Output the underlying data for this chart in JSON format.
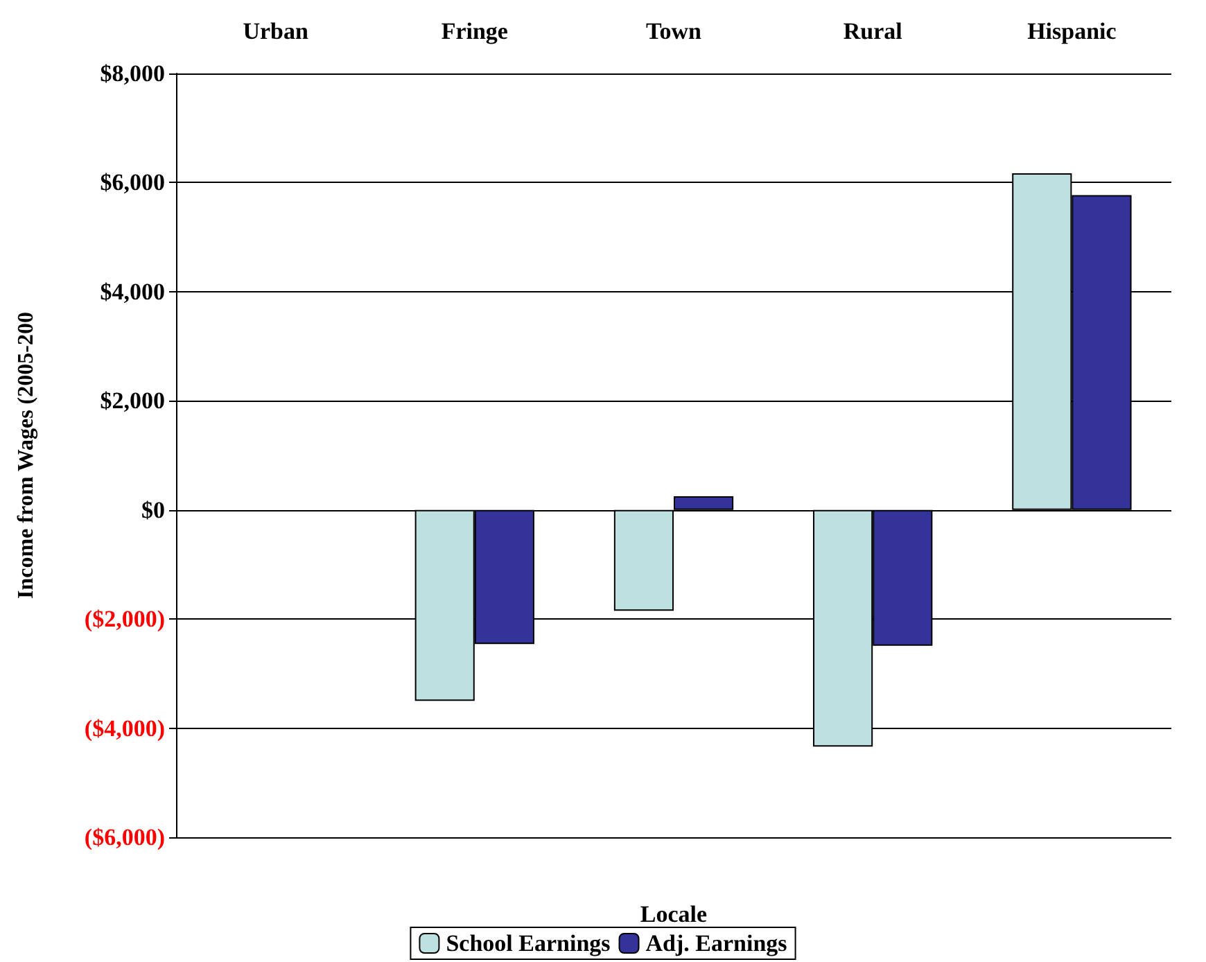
{
  "chart_data": {
    "type": "bar",
    "xlabel": "Locale",
    "ylabel": "Income from Wages (2005-200",
    "categories": [
      "Urban",
      "Fringe",
      "Town",
      "Rural",
      "Hispanic"
    ],
    "series": [
      {
        "name": "School Earnings",
        "color": "#bde0e0",
        "values": [
          null,
          -3500,
          -1850,
          -4340,
          6170
        ]
      },
      {
        "name": "Adj. Earnings",
        "color": "#333399",
        "values": [
          null,
          -2460,
          250,
          -2490,
          5770
        ]
      }
    ],
    "ylim": [
      -6000,
      8000
    ],
    "yticks": [
      {
        "value": -6000,
        "label": "($6,000)"
      },
      {
        "value": -4000,
        "label": "($4,000)"
      },
      {
        "value": -2000,
        "label": "($2,000)"
      },
      {
        "value": 0,
        "label": "$0"
      },
      {
        "value": 2000,
        "label": "$2,000"
      },
      {
        "value": 4000,
        "label": "$4,000"
      },
      {
        "value": 6000,
        "label": "$6,000"
      },
      {
        "value": 8000,
        "label": "$8,000"
      }
    ],
    "grid": "y",
    "legend": "bottom"
  }
}
